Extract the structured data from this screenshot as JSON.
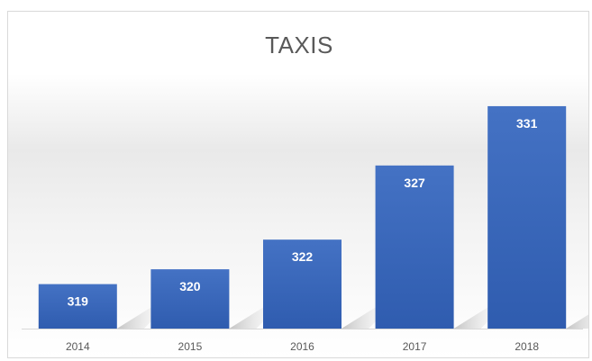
{
  "chart_data": {
    "type": "bar",
    "title": "TAXIS",
    "categories": [
      "2014",
      "2015",
      "2016",
      "2017",
      "2018"
    ],
    "values": [
      319,
      320,
      322,
      327,
      331
    ],
    "data_labels": [
      "319",
      "320",
      "322",
      "327",
      "331"
    ],
    "xlabel": "",
    "ylabel": "",
    "ylim": [
      316,
      333
    ],
    "grid": false,
    "legend": "none",
    "bar_color": "#3a68c2",
    "label_color": "#ffffff",
    "tick_color": "#595959"
  }
}
